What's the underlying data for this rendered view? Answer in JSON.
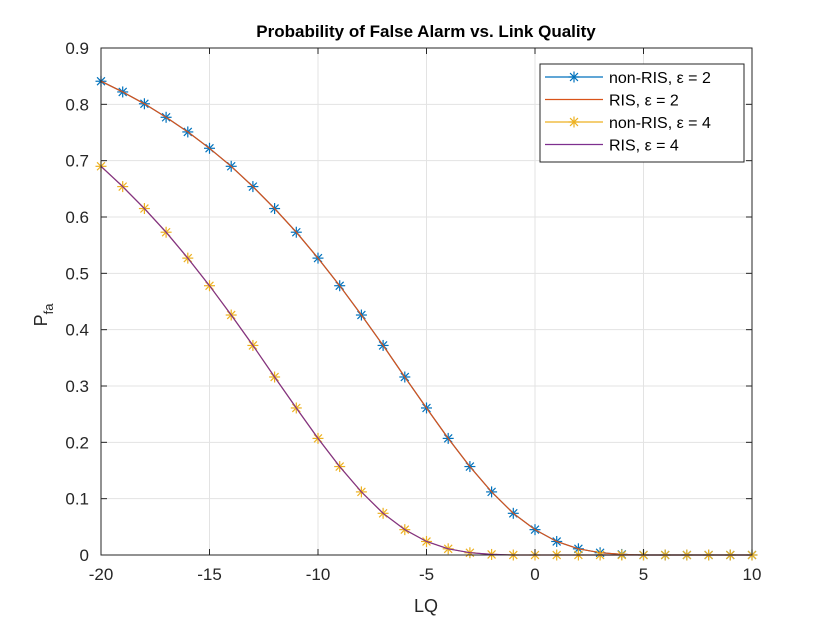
{
  "chart_data": {
    "type": "line",
    "title": "Probability of False Alarm vs. Link Quality",
    "xlabel": "LQ",
    "ylabel": "P",
    "ylabel_sub": "fa",
    "xlim": [
      -20,
      10
    ],
    "ylim": [
      0,
      0.9
    ],
    "xticks": [
      -20,
      -15,
      -10,
      -5,
      0,
      5,
      10
    ],
    "xtick_labels": [
      "-20",
      "-15",
      "-10",
      "-5",
      "0",
      "5",
      "10"
    ],
    "yticks": [
      0,
      0.1,
      0.2,
      0.3,
      0.4,
      0.5,
      0.6,
      0.7,
      0.8,
      0.9
    ],
    "ytick_labels": [
      "0",
      "0.1",
      "0.2",
      "0.3",
      "0.4",
      "0.5",
      "0.6",
      "0.7",
      "0.8",
      "0.9"
    ],
    "grid": true,
    "legend_position": "top-right",
    "x": [
      -20,
      -19,
      -18,
      -17,
      -16,
      -15,
      -14,
      -13,
      -12,
      -11,
      -10,
      -9,
      -8,
      -7,
      -6,
      -5,
      -4,
      -3,
      -2,
      -1,
      0,
      1,
      2,
      3,
      4,
      5,
      6,
      7,
      8,
      9,
      10
    ],
    "series": [
      {
        "name": "non-RIS, ε = 2",
        "color": "#0072BD",
        "style": "line-marker",
        "marker": "asterisk",
        "values": [
          0.841,
          0.822,
          0.801,
          0.777,
          0.751,
          0.722,
          0.69,
          0.654,
          0.615,
          0.573,
          0.527,
          0.478,
          0.426,
          0.372,
          0.316,
          0.261,
          0.207,
          0.157,
          0.112,
          0.074,
          0.045,
          0.024,
          0.011,
          0.004,
          0.001,
          0.0,
          0.0,
          0.0,
          0.0,
          0.0,
          0.0
        ]
      },
      {
        "name": "RIS, ε = 2",
        "color": "#D95319",
        "style": "line",
        "values": [
          0.841,
          0.822,
          0.801,
          0.777,
          0.751,
          0.722,
          0.69,
          0.654,
          0.615,
          0.573,
          0.527,
          0.478,
          0.426,
          0.372,
          0.316,
          0.261,
          0.207,
          0.157,
          0.112,
          0.074,
          0.045,
          0.024,
          0.011,
          0.004,
          0.001,
          0.0,
          0.0,
          0.0,
          0.0,
          0.0,
          0.0
        ]
      },
      {
        "name": "non-RIS, ε = 4",
        "color": "#EDB120",
        "style": "line-marker",
        "marker": "asterisk",
        "values": [
          0.69,
          0.654,
          0.615,
          0.573,
          0.527,
          0.478,
          0.426,
          0.372,
          0.316,
          0.261,
          0.207,
          0.157,
          0.112,
          0.074,
          0.045,
          0.024,
          0.011,
          0.004,
          0.001,
          0.0,
          0.0,
          0.0,
          0.0,
          0.0,
          0.0,
          0.0,
          0.0,
          0.0,
          0.0,
          0.0,
          0.0
        ]
      },
      {
        "name": "RIS, ε = 4",
        "color": "#7E2F8E",
        "style": "line",
        "values": [
          0.69,
          0.654,
          0.615,
          0.573,
          0.527,
          0.478,
          0.426,
          0.372,
          0.316,
          0.261,
          0.207,
          0.157,
          0.112,
          0.074,
          0.045,
          0.024,
          0.011,
          0.004,
          0.001,
          0.0,
          0.0,
          0.0,
          0.0,
          0.0,
          0.0,
          0.0,
          0.0,
          0.0,
          0.0,
          0.0,
          0.0
        ]
      }
    ]
  }
}
